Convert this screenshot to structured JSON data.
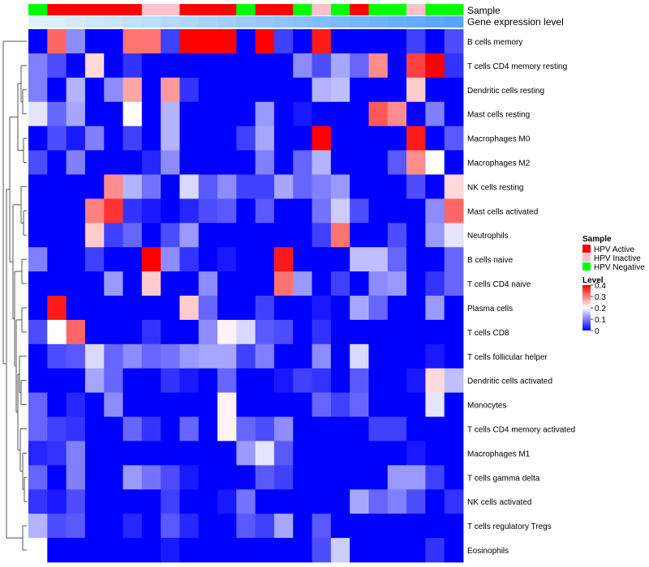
{
  "chart_data": {
    "type": "heatmap",
    "annotation_tracks": [
      "Sample",
      "Gene expression level"
    ],
    "rows": [
      "B cells memory",
      "T cells CD4 memory resting",
      "Dendritic cells resting",
      "Mast cells resting",
      "Macrophages M0",
      "Macrophages M2",
      "NK cells resting",
      "Mast cells activated",
      "Neutrophils",
      "B cells naive",
      "T cells CD4 naive",
      "Plasma cells",
      "T cells CD8",
      "T cells follicular helper",
      "Dendritic cells activated",
      "Monocytes",
      "T cells CD4 memory activated",
      "Macrophages M1",
      "T cells gamma delta",
      "NK cells activated",
      "T cells regulatory  Tregs",
      "Eosinophils"
    ],
    "sample_groups": [
      "Negative",
      "Active",
      "Active",
      "Active",
      "Active",
      "Active",
      "Inactive",
      "Inactive",
      "Active",
      "Active",
      "Active",
      "Negative",
      "Active",
      "Active",
      "Negative",
      "Inactive",
      "Negative",
      "Active",
      "Negative",
      "Negative",
      "Inactive",
      "Negative",
      "Negative"
    ],
    "expression_levels": [
      0.08,
      0.1,
      0.12,
      0.14,
      0.16,
      0.18,
      0.2,
      0.22,
      0.24,
      0.26,
      0.28,
      0.3,
      0.32,
      0.34,
      0.36,
      0.38,
      0.4,
      0.42,
      0.44,
      0.46,
      0.48,
      0.5,
      0.52
    ],
    "values": [
      [
        0.0,
        0.32,
        0.11,
        0.0,
        0.0,
        0.31,
        0.31,
        0.05,
        0.4,
        0.4,
        0.4,
        0.0,
        0.4,
        0.05,
        0.0,
        0.38,
        0.0,
        0.0,
        0.0,
        0.0,
        0.05,
        0.0,
        0.06
      ],
      [
        0.1,
        0.06,
        0.0,
        0.23,
        0.0,
        0.04,
        0.0,
        0.0,
        0.0,
        0.0,
        0.0,
        0.0,
        0.0,
        0.0,
        0.11,
        0.06,
        0.13,
        0.08,
        0.29,
        0.0,
        0.35,
        0.4,
        0.04
      ],
      [
        0.1,
        0.0,
        0.14,
        0.0,
        0.11,
        0.27,
        0.0,
        0.28,
        0.04,
        0.0,
        0.0,
        0.0,
        0.0,
        0.0,
        0.0,
        0.14,
        0.15,
        0.0,
        0.0,
        0.0,
        0.24,
        0.0,
        0.0
      ],
      [
        0.18,
        0.08,
        0.13,
        0.0,
        0.0,
        0.2,
        0.0,
        0.14,
        0.0,
        0.0,
        0.0,
        0.0,
        0.12,
        0.0,
        0.02,
        0.0,
        0.0,
        0.0,
        0.33,
        0.29,
        0.0,
        0.1,
        0.0
      ],
      [
        0.0,
        0.06,
        0.02,
        0.1,
        0.0,
        0.05,
        0.0,
        0.14,
        0.0,
        0.0,
        0.0,
        0.05,
        0.13,
        0.0,
        0.0,
        0.4,
        0.0,
        0.0,
        0.0,
        0.0,
        0.38,
        0.0,
        0.07
      ],
      [
        0.06,
        0.0,
        0.1,
        0.0,
        0.0,
        0.0,
        0.03,
        0.11,
        0.0,
        0.0,
        0.0,
        0.0,
        0.1,
        0.0,
        0.08,
        0.14,
        0.0,
        0.0,
        0.0,
        0.07,
        0.29,
        0.2,
        0.0
      ],
      [
        0.0,
        0.0,
        0.0,
        0.0,
        0.29,
        0.14,
        0.09,
        0.0,
        0.17,
        0.07,
        0.11,
        0.05,
        0.05,
        0.13,
        0.08,
        0.1,
        0.12,
        0.0,
        0.0,
        0.0,
        0.06,
        0.0,
        0.23
      ],
      [
        0.0,
        0.0,
        0.0,
        0.3,
        0.36,
        0.04,
        0.02,
        0.0,
        0.03,
        0.06,
        0.07,
        0.0,
        0.07,
        0.0,
        0.0,
        0.09,
        0.16,
        0.06,
        0.0,
        0.0,
        0.0,
        0.11,
        0.32
      ],
      [
        0.0,
        0.0,
        0.0,
        0.24,
        0.05,
        0.08,
        0.0,
        0.06,
        0.12,
        0.0,
        0.0,
        0.0,
        0.0,
        0.0,
        0.0,
        0.05,
        0.31,
        0.0,
        0.0,
        0.06,
        0.0,
        0.12,
        0.18
      ],
      [
        0.1,
        0.0,
        0.0,
        0.05,
        0.0,
        0.0,
        0.4,
        0.11,
        0.04,
        0.0,
        0.02,
        0.0,
        0.0,
        0.38,
        0.0,
        0.0,
        0.0,
        0.15,
        0.15,
        0.08,
        0.0,
        0.0,
        0.08
      ],
      [
        0.0,
        0.0,
        0.0,
        0.0,
        0.12,
        0.0,
        0.24,
        0.0,
        0.0,
        0.11,
        0.0,
        0.0,
        0.0,
        0.31,
        0.12,
        0.0,
        0.05,
        0.0,
        0.11,
        0.12,
        0.0,
        0.04,
        0.08
      ],
      [
        0.0,
        0.38,
        0.0,
        0.0,
        0.0,
        0.0,
        0.0,
        0.0,
        0.24,
        0.08,
        0.0,
        0.0,
        0.05,
        0.0,
        0.0,
        0.02,
        0.0,
        0.13,
        0.08,
        0.0,
        0.0,
        0.12,
        0.0
      ],
      [
        0.06,
        0.2,
        0.32,
        0.0,
        0.0,
        0.0,
        0.04,
        0.0,
        0.0,
        0.11,
        0.21,
        0.17,
        0.07,
        0.06,
        0.0,
        0.04,
        0.0,
        0.0,
        0.0,
        0.0,
        0.0,
        0.0,
        0.0
      ],
      [
        0.0,
        0.06,
        0.07,
        0.17,
        0.08,
        0.11,
        0.08,
        0.09,
        0.12,
        0.13,
        0.13,
        0.05,
        0.1,
        0.0,
        0.0,
        0.11,
        0.0,
        0.17,
        0.0,
        0.0,
        0.0,
        0.02,
        0.0
      ],
      [
        0.0,
        0.0,
        0.0,
        0.13,
        0.08,
        0.0,
        0.0,
        0.04,
        0.02,
        0.0,
        0.08,
        0.0,
        0.0,
        0.02,
        0.05,
        0.04,
        0.0,
        0.07,
        0.0,
        0.0,
        0.02,
        0.23,
        0.15
      ],
      [
        0.08,
        0.0,
        0.03,
        0.0,
        0.11,
        0.0,
        0.0,
        0.0,
        0.0,
        0.0,
        0.21,
        0.0,
        0.0,
        0.0,
        0.0,
        0.08,
        0.05,
        0.08,
        0.0,
        0.0,
        0.0,
        0.18,
        0.0
      ],
      [
        0.08,
        0.05,
        0.04,
        0.0,
        0.0,
        0.08,
        0.04,
        0.0,
        0.08,
        0.0,
        0.21,
        0.08,
        0.06,
        0.11,
        0.0,
        0.0,
        0.0,
        0.0,
        0.05,
        0.05,
        0.0,
        0.0,
        0.0
      ],
      [
        0.03,
        0.04,
        0.1,
        0.0,
        0.0,
        0.0,
        0.0,
        0.0,
        0.0,
        0.0,
        0.0,
        0.12,
        0.18,
        0.07,
        0.0,
        0.0,
        0.0,
        0.0,
        0.0,
        0.0,
        0.02,
        0.0,
        0.0
      ],
      [
        0.08,
        0.0,
        0.1,
        0.0,
        0.0,
        0.12,
        0.09,
        0.06,
        0.02,
        0.0,
        0.0,
        0.0,
        0.07,
        0.05,
        0.0,
        0.0,
        0.0,
        0.0,
        0.0,
        0.12,
        0.12,
        0.05,
        0.0
      ],
      [
        0.04,
        0.02,
        0.06,
        0.0,
        0.0,
        0.0,
        0.0,
        0.05,
        0.0,
        0.0,
        0.02,
        0.09,
        0.0,
        0.0,
        0.0,
        0.0,
        0.0,
        0.13,
        0.08,
        0.1,
        0.06,
        0.0,
        0.04
      ],
      [
        0.14,
        0.06,
        0.07,
        0.0,
        0.0,
        0.03,
        0.0,
        0.07,
        0.03,
        0.0,
        0.0,
        0.07,
        0.05,
        0.13,
        0.0,
        0.07,
        0.0,
        0.0,
        0.0,
        0.0,
        0.0,
        0.0,
        0.0
      ],
      [
        0.2,
        0.0,
        0.0,
        0.0,
        0.0,
        0.0,
        0.0,
        0.02,
        0.0,
        0.0,
        0.0,
        0.0,
        0.0,
        0.0,
        0.0,
        0.06,
        0.16,
        0.0,
        0.0,
        0.0,
        0.0,
        0.04,
        0.0
      ]
    ],
    "legend": {
      "sample": {
        "title": "Sample",
        "entries": [
          {
            "label": "HPV Active",
            "color": "#ff0000"
          },
          {
            "label": "HPV Inactive",
            "color": "#ffc0cb"
          },
          {
            "label": "HPV Negative",
            "color": "#00ff00"
          }
        ]
      },
      "level": {
        "title": "Level",
        "ticks": [
          "0.4",
          "0.3",
          "0.2",
          "0.1",
          "0"
        ],
        "min": 0,
        "max": 0.4
      }
    }
  }
}
